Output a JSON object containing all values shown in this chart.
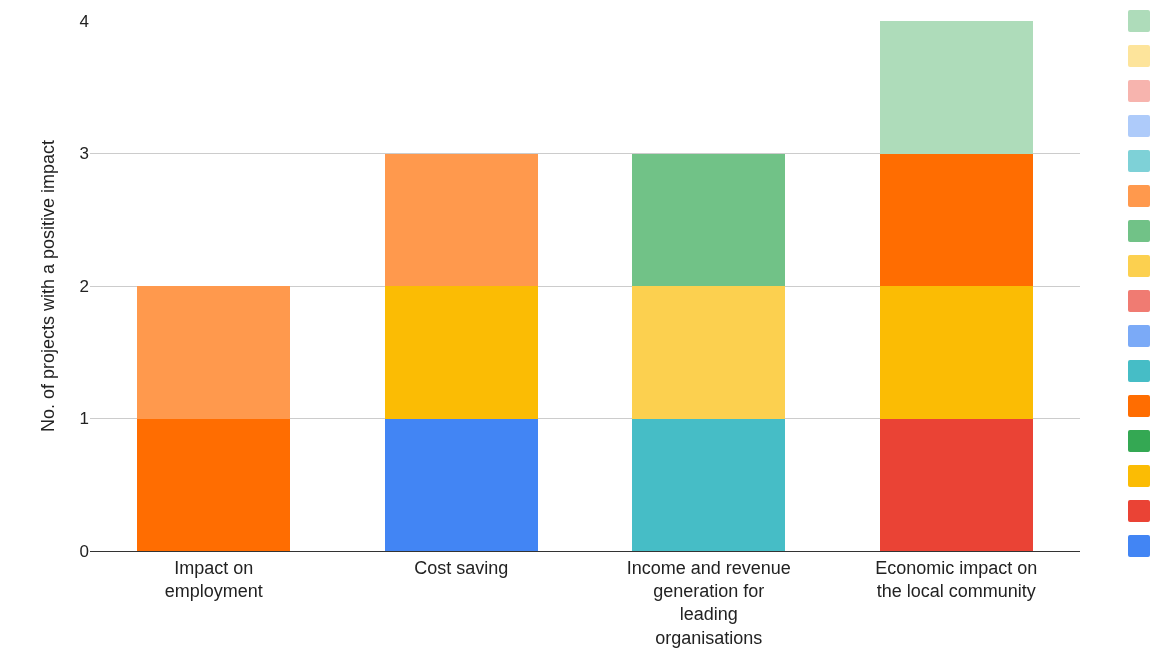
{
  "chart_data": {
    "type": "bar",
    "stacked": true,
    "ylabel": "No. of projects with a positive impact",
    "categories": [
      "Impact on employment",
      "Cost saving",
      "Income and revenue generation for leading organisations",
      "Economic impact on the local community"
    ],
    "ylim": [
      0,
      4
    ],
    "yticks": [
      0,
      1,
      2,
      3,
      4
    ],
    "grid": "y",
    "series": [
      {
        "color": "#4285f4",
        "values": [
          null,
          1,
          null,
          null
        ]
      },
      {
        "color": "#ea4335",
        "values": [
          null,
          null,
          null,
          1
        ]
      },
      {
        "color": "#fbbc04",
        "values": [
          null,
          1,
          null,
          1
        ]
      },
      {
        "color": "#34a853",
        "values": [
          null,
          null,
          null,
          null
        ]
      },
      {
        "color": "#ff6d01",
        "values": [
          1,
          null,
          null,
          1
        ]
      },
      {
        "color": "#46bdc6",
        "values": [
          null,
          null,
          1,
          null
        ]
      },
      {
        "color": "#7baaf7",
        "values": [
          null,
          null,
          null,
          null
        ]
      },
      {
        "color": "#f07b72",
        "values": [
          null,
          null,
          null,
          null
        ]
      },
      {
        "color": "#fcd04f",
        "values": [
          null,
          null,
          1,
          null
        ]
      },
      {
        "color": "#71c287",
        "values": [
          null,
          null,
          1,
          null
        ]
      },
      {
        "color": "#ff994d",
        "values": [
          1,
          1,
          null,
          null
        ]
      },
      {
        "color": "#7ed1d7",
        "values": [
          null,
          null,
          null,
          null
        ]
      },
      {
        "color": "#aecbfa",
        "values": [
          null,
          null,
          null,
          null
        ]
      },
      {
        "color": "#f7b4ae",
        "values": [
          null,
          null,
          null,
          null
        ]
      },
      {
        "color": "#fde49b",
        "values": [
          null,
          null,
          null,
          null
        ]
      },
      {
        "color": "#aedcba",
        "values": [
          null,
          null,
          null,
          1
        ]
      }
    ]
  }
}
